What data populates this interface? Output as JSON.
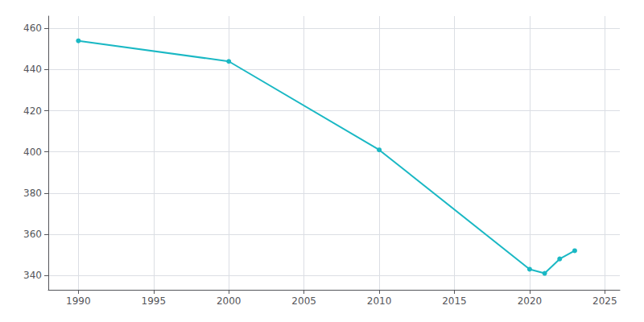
{
  "chart_data": {
    "type": "line",
    "x": [
      1990,
      2000,
      2010,
      2020,
      2021,
      2022,
      2023
    ],
    "values": [
      454,
      444,
      401,
      343,
      341,
      348,
      352
    ],
    "color": "#1ab8c4",
    "marker": "circle",
    "xlim": [
      1988,
      2026
    ],
    "xticks": [
      1990,
      1995,
      2000,
      2005,
      2010,
      2015,
      2020,
      2025
    ],
    "ylim": [
      333,
      466
    ],
    "yticks": [
      340,
      360,
      380,
      400,
      420,
      440,
      460
    ],
    "grid": true
  }
}
